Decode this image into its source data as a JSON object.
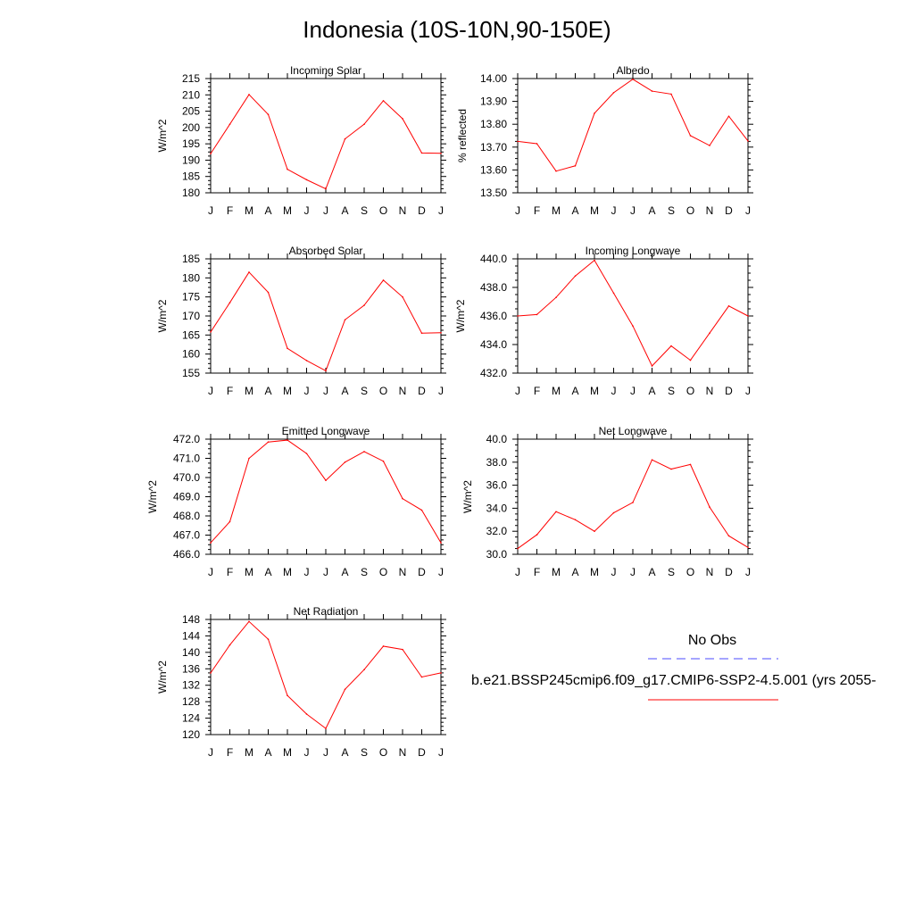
{
  "figure": {
    "title": "Indonesia (10S-10N,90-150E)",
    "line_color": "#ff0000",
    "obs_color": "#0000ff",
    "legend": {
      "obs_label": "No Obs",
      "model_label": "b.e21.BSSP245cmip6.f09_g17.CMIP6-SSP2-4.5.001 (yrs 2055-"
    }
  },
  "chart_data": [
    {
      "id": "incoming-solar",
      "type": "line",
      "title": "Incoming Solar",
      "ylabel": "W/m^2",
      "categories": [
        "J",
        "F",
        "M",
        "A",
        "M",
        "J",
        "J",
        "A",
        "S",
        "O",
        "N",
        "D",
        "J"
      ],
      "ylim": [
        180,
        215
      ],
      "yticks": [
        180,
        185,
        190,
        195,
        200,
        205,
        210,
        215
      ],
      "yticklabels": [
        "180",
        "185",
        "190",
        "195",
        "200",
        "205",
        "210",
        "215"
      ],
      "series": [
        {
          "values": [
            192.0,
            201.0,
            210.1,
            204.0,
            187.2,
            184.0,
            181.2,
            196.5,
            201.0,
            208.2,
            202.7,
            192.2,
            192.1
          ]
        }
      ]
    },
    {
      "id": "albedo",
      "type": "line",
      "title": "Albedo",
      "ylabel": "% reflected",
      "categories": [
        "J",
        "F",
        "M",
        "A",
        "M",
        "J",
        "J",
        "A",
        "S",
        "O",
        "N",
        "D",
        "J"
      ],
      "ylim": [
        13.5,
        14.0
      ],
      "yticks": [
        13.5,
        13.6,
        13.7,
        13.8,
        13.9,
        14.0
      ],
      "yticklabels": [
        "13.50",
        "13.60",
        "13.70",
        "13.80",
        "13.90",
        "14.00"
      ],
      "series": [
        {
          "values": [
            13.725,
            13.715,
            13.595,
            13.618,
            13.848,
            13.938,
            13.997,
            13.945,
            13.932,
            13.75,
            13.707,
            13.835,
            13.727
          ]
        }
      ]
    },
    {
      "id": "absorbed-solar",
      "type": "line",
      "title": "Absorbed Solar",
      "ylabel": "W/m^2",
      "categories": [
        "J",
        "F",
        "M",
        "A",
        "M",
        "J",
        "J",
        "A",
        "S",
        "O",
        "N",
        "D",
        "J"
      ],
      "ylim": [
        155,
        185
      ],
      "yticks": [
        155,
        160,
        165,
        170,
        175,
        180,
        185
      ],
      "yticklabels": [
        "155",
        "160",
        "165",
        "170",
        "175",
        "180",
        "185"
      ],
      "series": [
        {
          "values": [
            165.8,
            173.5,
            181.5,
            176.2,
            161.5,
            158.3,
            155.6,
            169.0,
            172.8,
            179.4,
            175.0,
            165.5,
            165.6
          ]
        }
      ]
    },
    {
      "id": "incoming-longwave",
      "type": "line",
      "title": "Incoming Longwave",
      "ylabel": "W/m^2",
      "categories": [
        "J",
        "F",
        "M",
        "A",
        "M",
        "J",
        "J",
        "A",
        "S",
        "O",
        "N",
        "D",
        "J"
      ],
      "ylim": [
        432,
        440
      ],
      "yticks": [
        432,
        434,
        436,
        438,
        440
      ],
      "yticklabels": [
        "432.0",
        "434.0",
        "436.0",
        "438.0",
        "440.0"
      ],
      "series": [
        {
          "values": [
            436.0,
            436.1,
            437.3,
            438.8,
            439.9,
            437.6,
            435.3,
            432.5,
            433.9,
            432.9,
            434.8,
            436.7,
            436.0
          ]
        }
      ]
    },
    {
      "id": "emitted-longwave",
      "type": "line",
      "title": "Emitted Longwave",
      "ylabel": "W/m^2",
      "categories": [
        "J",
        "F",
        "M",
        "A",
        "M",
        "J",
        "J",
        "A",
        "S",
        "O",
        "N",
        "D",
        "J"
      ],
      "ylim": [
        466,
        472
      ],
      "yticks": [
        466,
        467,
        468,
        469,
        470,
        471,
        472
      ],
      "yticklabels": [
        "466.0",
        "467.0",
        "468.0",
        "469.0",
        "470.0",
        "471.0",
        "472.0"
      ],
      "series": [
        {
          "values": [
            466.6,
            467.7,
            471.0,
            471.85,
            471.95,
            471.25,
            469.85,
            470.8,
            471.35,
            470.85,
            468.9,
            468.3,
            466.6
          ]
        }
      ]
    },
    {
      "id": "net-longwave",
      "type": "line",
      "title": "Net Longwave",
      "ylabel": "W/m^2",
      "categories": [
        "J",
        "F",
        "M",
        "A",
        "M",
        "J",
        "J",
        "A",
        "S",
        "O",
        "N",
        "D",
        "J"
      ],
      "ylim": [
        30,
        40
      ],
      "yticks": [
        30,
        32,
        34,
        36,
        38,
        40
      ],
      "yticklabels": [
        "30.0",
        "32.0",
        "34.0",
        "36.0",
        "38.0",
        "40.0"
      ],
      "series": [
        {
          "values": [
            30.5,
            31.7,
            33.7,
            33.0,
            32.0,
            33.6,
            34.5,
            38.2,
            37.4,
            37.8,
            34.1,
            31.6,
            30.6
          ]
        }
      ]
    },
    {
      "id": "net-radiation",
      "type": "line",
      "title": "Net Radiation",
      "ylabel": "W/m^2",
      "categories": [
        "J",
        "F",
        "M",
        "A",
        "M",
        "J",
        "J",
        "A",
        "S",
        "O",
        "N",
        "D",
        "J"
      ],
      "ylim": [
        120,
        148
      ],
      "yticks": [
        120,
        124,
        128,
        132,
        136,
        140,
        144,
        148
      ],
      "yticklabels": [
        "120",
        "124",
        "128",
        "132",
        "136",
        "140",
        "144",
        "148"
      ],
      "series": [
        {
          "values": [
            135.0,
            141.8,
            147.5,
            143.2,
            129.5,
            125.0,
            121.5,
            131.0,
            135.8,
            141.5,
            140.7,
            134.0,
            135.0
          ]
        }
      ]
    }
  ]
}
